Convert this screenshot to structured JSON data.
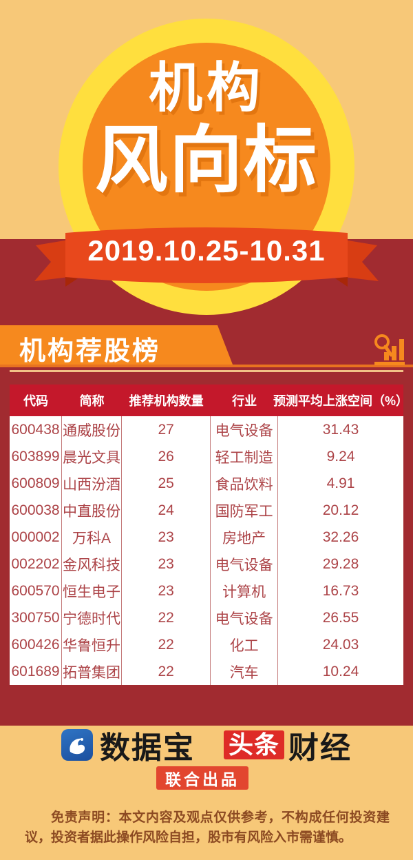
{
  "badge": {
    "title_line1": "机构",
    "title_line2": "风向标",
    "date_range": "2019.10.25-10.31"
  },
  "section": {
    "title": "机构荐股榜",
    "icon": "magnifier-bar-chart-icon"
  },
  "table": {
    "headers": [
      "代码",
      "简称",
      "推荐机构数量",
      "行业",
      "预测平均上涨空间（%）"
    ],
    "rows": [
      [
        "600438",
        "通威股份",
        "27",
        "电气设备",
        "31.43"
      ],
      [
        "603899",
        "晨光文具",
        "26",
        "轻工制造",
        "9.24"
      ],
      [
        "600809",
        "山西汾酒",
        "25",
        "食品饮料",
        "4.91"
      ],
      [
        "600038",
        "中直股份",
        "24",
        "国防军工",
        "20.12"
      ],
      [
        "000002",
        "万科A",
        "23",
        "房地产",
        "32.26"
      ],
      [
        "002202",
        "金风科技",
        "23",
        "电气设备",
        "29.28"
      ],
      [
        "600570",
        "恒生电子",
        "23",
        "计算机",
        "16.73"
      ],
      [
        "300750",
        "宁德时代",
        "22",
        "电气设备",
        "26.55"
      ],
      [
        "600426",
        "华鲁恒升",
        "22",
        "化工",
        "24.03"
      ],
      [
        "601689",
        "拓普集团",
        "22",
        "汽车",
        "10.24"
      ]
    ]
  },
  "footer": {
    "brand1": "数据宝",
    "brand1_icon": "databao-bird-app-icon",
    "brand2_box": "头条",
    "brand2_text": "财经",
    "joint_label": "联合出品",
    "disclaimer": "免责声明：本文内容及观点仅供参考，不构成任何投资建议，投资者据此操作风险自担，股市有风险入市需谨慎。"
  },
  "colors": {
    "bg_yellow": "#F7C878",
    "badge_yellow": "#FFDF3E",
    "badge_orange": "#F6891E",
    "ribbon_red": "#E8481C",
    "ribbon_fold": "#A82708",
    "bg_dark_red": "#A12B30",
    "header_red": "#C4182B",
    "row_text_red": "#AC4347",
    "table_divider": "#C47A7A",
    "brand_blue": "#2565B0",
    "brand_box_red": "#DE2B27",
    "joint_red": "#E2462F",
    "disclaimer_brown": "#8C4A22",
    "orange_line": "#E87320",
    "cream_line": "#F2C287"
  }
}
